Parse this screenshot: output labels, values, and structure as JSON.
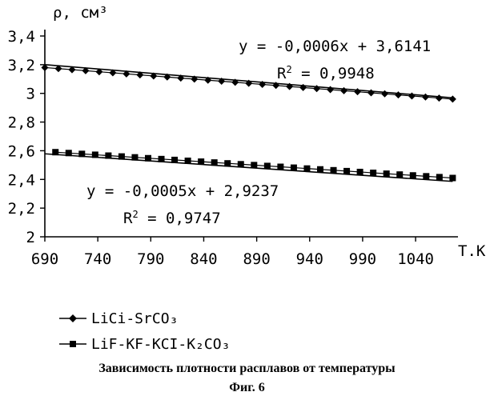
{
  "chart_data": {
    "type": "line",
    "ylabel": "ρ, см³",
    "xlabel": "Т.К",
    "xlim": [
      690,
      1080
    ],
    "ylim": [
      2,
      3.4
    ],
    "x_ticks": [
      "690",
      "740",
      "790",
      "840",
      "890",
      "940",
      "990",
      "1040"
    ],
    "y_ticks": [
      "2",
      "2,2",
      "2,4",
      "2,6",
      "2,8",
      "3",
      "3,2",
      "3,4"
    ],
    "series": [
      {
        "name": "LiCi-SrCO₃",
        "marker": "diamond",
        "x_start": 690,
        "x_end": 1075,
        "n_points": 31,
        "y_start": 3.18,
        "y_end": 2.96,
        "trend": {
          "slope": -0.0006,
          "intercept": 3.6141
        },
        "equation": "y = -0,0006x + 3,6141",
        "r2_label": "R",
        "r2_value": " = 0,9948"
      },
      {
        "name": "LiF-KF-KCI-K₂CO₃",
        "marker": "square",
        "x_start": 700,
        "x_end": 1075,
        "n_points": 31,
        "y_start": 2.59,
        "y_end": 2.41,
        "trend": {
          "slope": -0.0005,
          "intercept": 2.9237
        },
        "equation": "y = -0,0005x + 2,9237",
        "r2_label": "R",
        "r2_value": " = 0,9747"
      }
    ]
  },
  "legend": [
    {
      "label": "LiCi-SrCO₃"
    },
    {
      "label": "LiF-KF-KCI-K₂CO₃"
    }
  ],
  "caption": {
    "title": "Зависимость плотности расплавов от температуры",
    "figure": "Фиг. 6"
  }
}
